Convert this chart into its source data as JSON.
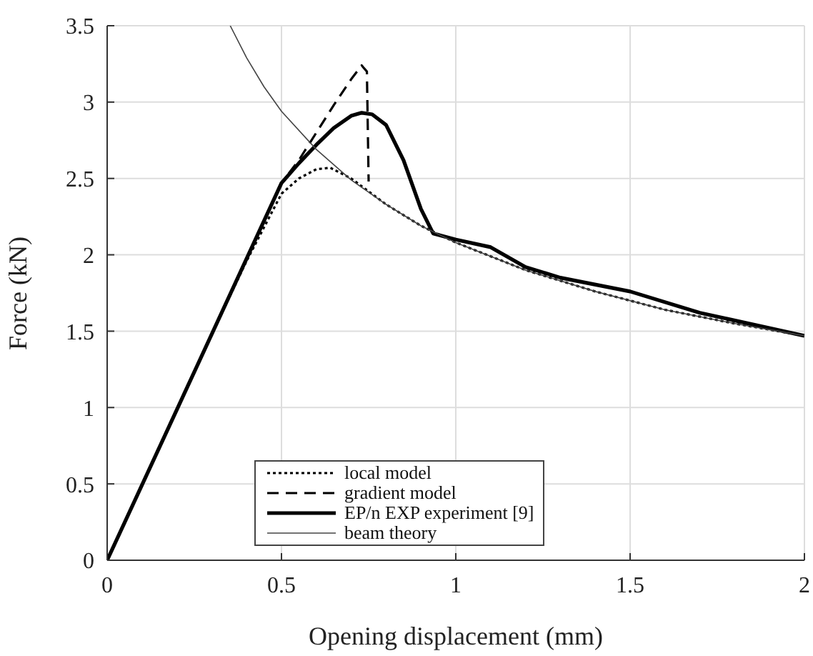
{
  "chart_data": {
    "type": "line",
    "xlabel": "Opening displacement (mm)",
    "ylabel": "Force (kN)",
    "xlim": [
      0,
      2
    ],
    "ylim": [
      0,
      3.5
    ],
    "xticks": [
      0,
      0.5,
      1,
      1.5,
      2
    ],
    "yticks": [
      0,
      0.5,
      1,
      1.5,
      2,
      2.5,
      3,
      3.5
    ],
    "grid": true,
    "legend": "bottom",
    "marker": "none",
    "series": [
      {
        "name": "local model",
        "color": "#000000",
        "line_style": "dotted",
        "x": [
          0,
          0.3,
          0.4,
          0.5,
          0.55,
          0.6,
          0.64,
          0.7,
          0.8,
          0.9,
          1.0,
          1.2,
          1.4,
          1.6,
          1.8,
          2.0
        ],
        "values": [
          0,
          1.48,
          1.96,
          2.4,
          2.5,
          2.56,
          2.57,
          2.5,
          2.33,
          2.19,
          2.08,
          1.9,
          1.76,
          1.64,
          1.55,
          1.47
        ]
      },
      {
        "name": "gradient model",
        "color": "#000000",
        "line_style": "dashed",
        "x": [
          0,
          0.3,
          0.5,
          0.55,
          0.6,
          0.65,
          0.7,
          0.73,
          0.745,
          0.75
        ],
        "values": [
          0,
          1.48,
          2.47,
          2.62,
          2.8,
          2.98,
          3.15,
          3.24,
          3.2,
          2.48
        ]
      },
      {
        "name": "EP/n EXP experiment [9]",
        "color": "#000000",
        "line_style": "solid",
        "x": [
          0,
          0.3,
          0.5,
          0.55,
          0.6,
          0.65,
          0.7,
          0.73,
          0.76,
          0.8,
          0.85,
          0.9,
          0.935,
          1.0,
          1.1,
          1.2,
          1.3,
          1.5,
          1.7,
          2.0
        ],
        "values": [
          0,
          1.48,
          2.47,
          2.6,
          2.72,
          2.83,
          2.91,
          2.93,
          2.92,
          2.85,
          2.62,
          2.3,
          2.14,
          2.1,
          2.05,
          1.92,
          1.85,
          1.76,
          1.62,
          1.47
        ]
      },
      {
        "name": "beam theory",
        "color": "#444444",
        "line_style": "solid",
        "x": [
          0.353,
          0.4,
          0.45,
          0.5,
          0.6,
          0.7,
          0.8,
          0.9,
          1.0,
          1.2,
          1.4,
          1.6,
          1.8,
          2.0
        ],
        "values": [
          3.5,
          3.29,
          3.1,
          2.94,
          2.69,
          2.49,
          2.33,
          2.19,
          2.08,
          1.9,
          1.76,
          1.64,
          1.55,
          1.47
        ]
      }
    ]
  }
}
